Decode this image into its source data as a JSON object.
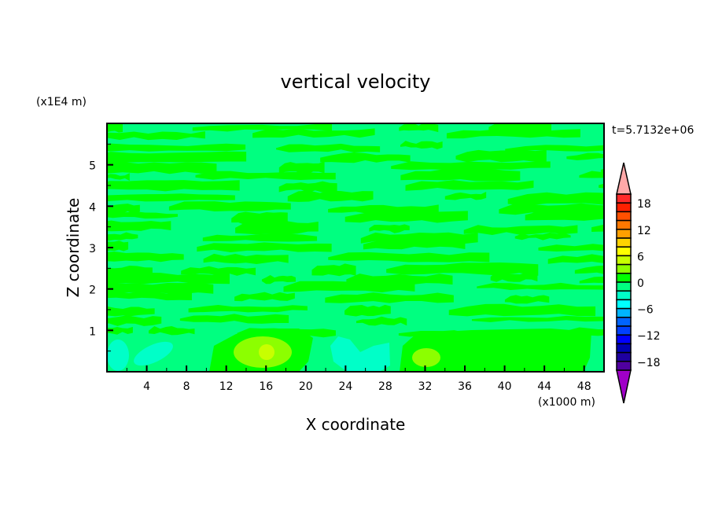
{
  "chart_data": {
    "type": "heatmap",
    "title": "vertical velocity",
    "xlabel": "X coordinate",
    "ylabel": "Z coordinate",
    "x_unit": "(x1000 m)",
    "y_unit": "(x1E4 m)",
    "time_label": "t=5.7132e+06",
    "xlim": [
      0,
      50
    ],
    "ylim": [
      0,
      6
    ],
    "x_ticks": [
      "4",
      "8",
      "12",
      "16",
      "20",
      "24",
      "28",
      "32",
      "36",
      "40",
      "44",
      "48"
    ],
    "y_ticks": [
      "1",
      "2",
      "3",
      "4",
      "5"
    ],
    "colorbar": {
      "levels": [
        -20,
        -18,
        -16,
        -14,
        -12,
        -10,
        -8,
        -6,
        -4,
        -2,
        0,
        2,
        4,
        6,
        8,
        10,
        12,
        14,
        16,
        18,
        20
      ],
      "tick_labels": [
        "18",
        "12",
        "6",
        "0",
        "-6",
        "-12",
        "-18"
      ],
      "colors_top_to_bottom": [
        "#ff2a2a",
        "#ff2000",
        "#ff5000",
        "#ff7800",
        "#ffa000",
        "#ffd200",
        "#ffff00",
        "#c8ff00",
        "#8cff00",
        "#00ff00",
        "#00ff80",
        "#00ffc8",
        "#00ffff",
        "#00b4ff",
        "#0064ff",
        "#0040ff",
        "#0000ff",
        "#0000b4",
        "#1e00a0",
        "#5000a0"
      ],
      "over_color": "#ffa8a8",
      "under_color": "#a000c8"
    },
    "field_colors": {
      "background": "#00ff80",
      "weak_up": "#00ff00",
      "weak_down": "#00ffc8",
      "moderate_up": "#8cff00",
      "strong_up": "#c8ff00"
    }
  }
}
